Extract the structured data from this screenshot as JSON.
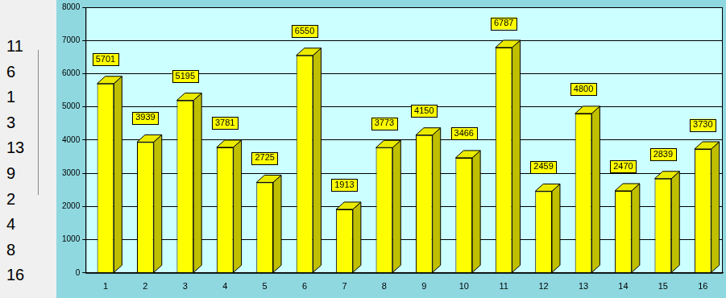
{
  "chart_data": {
    "type": "bar",
    "categories": [
      "1",
      "2",
      "3",
      "4",
      "5",
      "6",
      "7",
      "8",
      "9",
      "10",
      "11",
      "12",
      "13",
      "14",
      "15",
      "16"
    ],
    "values": [
      5701,
      3939,
      5195,
      3781,
      2725,
      6550,
      1913,
      3773,
      4150,
      3466,
      6787,
      2459,
      4800,
      2470,
      2839,
      3730
    ],
    "color": "#ffff00",
    "ylim": [
      0,
      8000
    ],
    "yticks": [
      0,
      1000,
      2000,
      3000,
      4000,
      5000,
      6000,
      7000,
      8000
    ],
    "grid": true,
    "data_labels": true
  },
  "side_list": [
    11,
    6,
    1,
    3,
    13,
    9,
    2,
    4,
    8,
    16
  ]
}
